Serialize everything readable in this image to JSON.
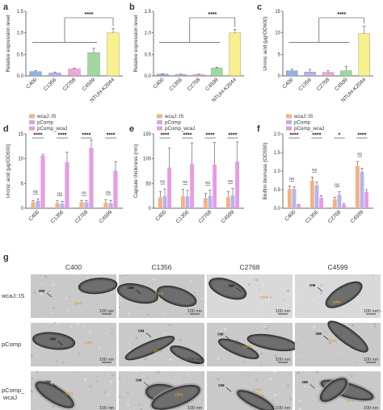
{
  "colors": {
    "blue": "#8fb3e8",
    "pink": "#f0a6d8",
    "green": "#9fd99f",
    "yellow": "#f7f08c",
    "orange": "#f4b183",
    "lavender": "#b4b4ee",
    "magenta": "#e89be3"
  },
  "panel_letters": [
    "a",
    "b",
    "c",
    "d",
    "e",
    "f",
    "g"
  ],
  "chart_data": [
    {
      "panel": "a",
      "type": "bar",
      "ylabel": "Relative expression level",
      "categories": [
        "C400",
        "C1356",
        "C2768",
        "C4599",
        "NTUH-K2044"
      ],
      "values": [
        0.1,
        0.07,
        0.16,
        0.54,
        1.0
      ],
      "errors": [
        0.02,
        0.02,
        0.02,
        0.1,
        0.1
      ],
      "bar_colors": [
        "#8fb3e8",
        "#b4b4ee",
        "#f0a6d8",
        "#9fd99f",
        "#f7f08c"
      ],
      "ylim": [
        0,
        1.5
      ],
      "yticks": [
        "0.0",
        "0.5",
        "1.0",
        "1.5"
      ],
      "significance": "****"
    },
    {
      "panel": "b",
      "type": "bar",
      "ylabel": "Relative expression level",
      "categories": [
        "C400",
        "C1356",
        "C2768",
        "C4599",
        "NTUH-K2044"
      ],
      "values": [
        0.04,
        0.03,
        0.03,
        0.18,
        1.0
      ],
      "errors": [
        0.01,
        0.01,
        0.01,
        0.02,
        0.08
      ],
      "bar_colors": [
        "#8fb3e8",
        "#b4b4ee",
        "#f0a6d8",
        "#9fd99f",
        "#f7f08c"
      ],
      "ylim": [
        0,
        1.5
      ],
      "yticks": [
        "0.0",
        "0.5",
        "1.0",
        "1.5"
      ],
      "significance": "****"
    },
    {
      "panel": "c",
      "type": "bar",
      "ylabel": "Uronic acid (μg/OD600)",
      "categories": [
        "C400",
        "C1356",
        "C2768",
        "C4599",
        "NTUH-K2044"
      ],
      "values": [
        1.2,
        0.9,
        0.8,
        1.2,
        9.8
      ],
      "errors": [
        0.4,
        0.6,
        0.4,
        1.0,
        1.8
      ],
      "bar_colors": [
        "#8fb3e8",
        "#b4b4ee",
        "#f0a6d8",
        "#9fd99f",
        "#f7f08c"
      ],
      "ylim": [
        0,
        15
      ],
      "yticks": [
        "0",
        "5",
        "10",
        "15"
      ],
      "significance": "****"
    },
    {
      "panel": "d",
      "type": "bar",
      "ylabel": "Uronic acid (μg/OD600)",
      "categories": [
        "C400",
        "C1356",
        "C2768",
        "C4599"
      ],
      "series": [
        {
          "name": "wcaJ::IS",
          "values": [
            1.2,
            1.0,
            1.2,
            1.1
          ],
          "errors": [
            0.4,
            0.5,
            0.4,
            0.6
          ]
        },
        {
          "name": "pComp",
          "values": [
            1.5,
            0.9,
            1.2,
            1.0
          ],
          "errors": [
            0.4,
            0.5,
            0.4,
            0.6
          ]
        },
        {
          "name": "pComp_wcaJ",
          "values": [
            10.6,
            9.3,
            12.2,
            7.6
          ],
          "errors": [
            0.3,
            2.0,
            1.6,
            1.8
          ]
        }
      ],
      "ylim": [
        0,
        15
      ],
      "yticks": [
        "0",
        "5",
        "10",
        "15"
      ],
      "ns": [
        "ns",
        "ns",
        "ns",
        "ns"
      ],
      "significance": [
        "****",
        "****",
        "****",
        "****"
      ]
    },
    {
      "panel": "e",
      "type": "bar",
      "ylabel": "Capsule thickness (nm)",
      "categories": [
        "C400",
        "C1356",
        "C2768",
        "C4599"
      ],
      "series": [
        {
          "name": "wcaJ::IS",
          "values": [
            22,
            24,
            20,
            22
          ],
          "errors": [
            12,
            14,
            10,
            12
          ]
        },
        {
          "name": "pComp",
          "values": [
            25,
            24,
            25,
            26
          ],
          "errors": [
            14,
            12,
            12,
            14
          ]
        },
        {
          "name": "pComp_wcaJ",
          "values": [
            82,
            90,
            88,
            94
          ],
          "errors": [
            40,
            42,
            45,
            40
          ]
        }
      ],
      "ylim": [
        0,
        150
      ],
      "yticks": [
        "0",
        "50",
        "100",
        "150"
      ],
      "ns": [
        "ns",
        "ns",
        "ns",
        "ns"
      ],
      "significance": [
        "****",
        "****",
        "****",
        "****"
      ]
    },
    {
      "panel": "f",
      "type": "bar",
      "ylabel": "Biofilm biomass (OD590)",
      "categories": [
        "C400",
        "C1356",
        "C2768",
        "C4599"
      ],
      "series": [
        {
          "name": "wcaJ::IS",
          "values": [
            0.52,
            0.74,
            0.24,
            1.14
          ],
          "errors": [
            0.08,
            0.1,
            0.06,
            0.12
          ]
        },
        {
          "name": "pComp",
          "values": [
            0.52,
            0.62,
            0.36,
            0.98
          ],
          "errors": [
            0.06,
            0.08,
            0.08,
            0.1
          ]
        },
        {
          "name": "pComp_wcaJ",
          "values": [
            0.08,
            0.28,
            0.1,
            0.44
          ],
          "errors": [
            0.02,
            0.06,
            0.03,
            0.06
          ]
        }
      ],
      "ylim": [
        0,
        2.0
      ],
      "yticks": [
        "0.0",
        "0.5",
        "1.0",
        "1.5",
        "2.0"
      ],
      "ns": [
        "ns",
        "ns",
        "ns",
        "ns"
      ],
      "significance": [
        "****",
        "****",
        "*",
        "****"
      ]
    }
  ],
  "micrographs": {
    "columns": [
      "C400",
      "C1356",
      "C2768",
      "C4599"
    ],
    "rows": [
      "wcaJ::IS",
      "pComp",
      "pComp_\nwcaJ"
    ],
    "row_labels": [
      "wcaJ::IS",
      "pComp",
      "pComp_"
    ],
    "row_label_sub": [
      "",
      "",
      "wcaJ"
    ],
    "om_label": "OM",
    "cps_label": "CPS",
    "scale": "100 nm"
  }
}
